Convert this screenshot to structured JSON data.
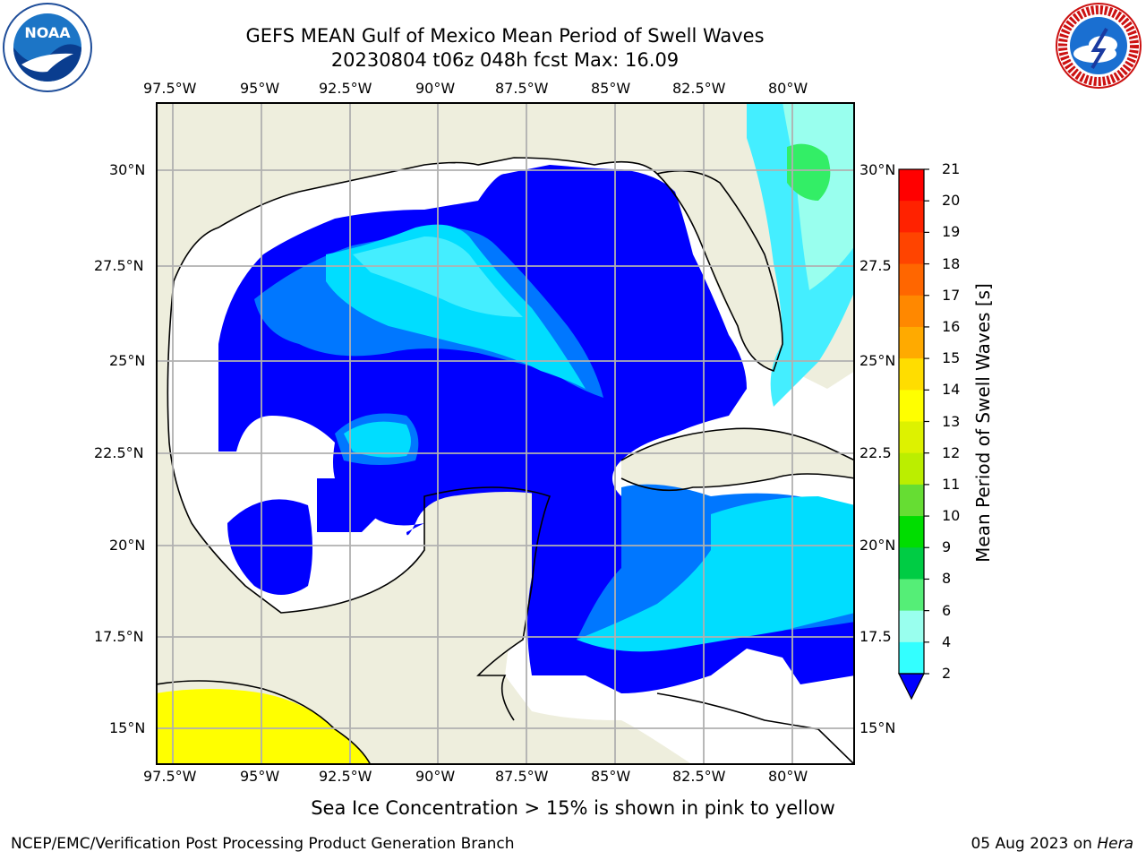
{
  "title": {
    "line1": "GEFS MEAN Gulf of Mexico Mean Period of Swell Waves",
    "line2": "20230804 t06z 048h fcst   Max: 16.09"
  },
  "map": {
    "lon_labels": [
      "97.5°W",
      "95°W",
      "92.5°W",
      "90°W",
      "87.5°W",
      "85°W",
      "82.5°W",
      "80°W"
    ],
    "lat_labels_left": [
      "30°N",
      "27.5°N",
      "25°N",
      "22.5°N",
      "20°N",
      "17.5°N",
      "15°N"
    ],
    "lat_labels_right": [
      "30°N",
      "27.5",
      "25°N",
      "22.5",
      "20°N",
      "17.5",
      "15°N"
    ],
    "colors": {
      "land": "#eeeedd",
      "water_low": "#ffffff",
      "band_2_4": "#0000ff",
      "band_4_6": "#0077ff",
      "band_6_8": "#00ddff",
      "band_8_9": "#44eeff",
      "band_9_10": "#99ffee",
      "band_10_11": "#33ee66",
      "ice": "#ffff00"
    }
  },
  "colorbar": {
    "label": "Mean Period of Swell Waves [s]",
    "ticks": [
      "21",
      "20",
      "19",
      "18",
      "17",
      "16",
      "15",
      "14",
      "13",
      "12",
      "11",
      "10",
      "9",
      "8",
      "6",
      "4",
      "2"
    ],
    "colors": [
      "#ff0000",
      "#ff2200",
      "#ff4400",
      "#ff6600",
      "#ff8800",
      "#ffaa00",
      "#ffdd00",
      "#ffff00",
      "#ddf200",
      "#bbee00",
      "#66dd33",
      "#00dd00",
      "#00cc44",
      "#55ee77",
      "#99ffee",
      "#33ffff",
      "#00ddff",
      "#0077ff",
      "#0000ff"
    ]
  },
  "footer": {
    "note": "Sea Ice Concentration > 15% is shown in pink to yellow",
    "left": "NCEP/EMC/Verification Post Processing Product Generation Branch",
    "right_date": "05 Aug 2023 on ",
    "right_host": "Hera"
  },
  "logos": {
    "noaa": "NOAA",
    "nws_ring": "NATIONAL WEATHER SERVICE"
  }
}
